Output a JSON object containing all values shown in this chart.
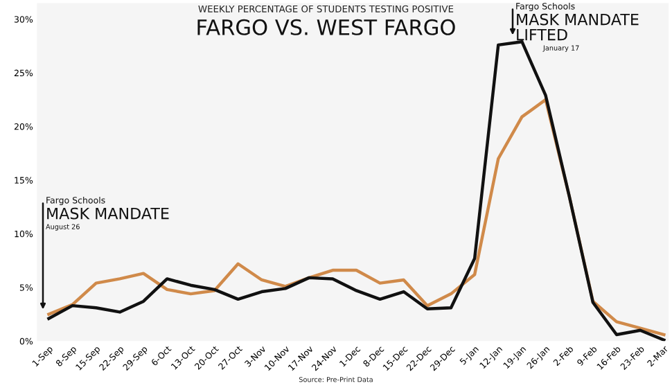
{
  "chart_data": {
    "type": "line",
    "title": "FARGO VS. WEST FARGO",
    "subtitle": "WEEKLY PERCENTAGE OF STUDENTS TESTING POSITIVE",
    "annotations": [
      "Fargo Schools",
      "MASK MANDATE",
      "August 26",
      "Fargo Schools",
      "MASK MANDATE LIFTED",
      "January 17",
      "Source: Pre-Print Data"
    ],
    "categories": [
      "1-Sep",
      "8-Sep",
      "15-Sep",
      "22-Sep",
      "29-Sep",
      "6-Oct",
      "13-Oct",
      "20-Oct",
      "27-Oct",
      "3-Nov",
      "10-Nov",
      "17-Nov",
      "24-Nov",
      "1-Dec",
      "8-Dec",
      "15-Dec",
      "22-Dec",
      "29-Dec",
      "5-Jan",
      "12-Jan",
      "19-Jan",
      "26-Jan",
      "2-Feb",
      "9-Feb",
      "16-Feb",
      "23-Feb",
      "2-Mar"
    ],
    "series": [
      {
        "color": "#d08a4a",
        "values": [
          2.5,
          3.4,
          5.4,
          5.8,
          6.3,
          4.8,
          4.4,
          4.7,
          7.2,
          5.7,
          5.1,
          5.9,
          6.6,
          6.6,
          5.4,
          5.7,
          3.3,
          4.4,
          6.2,
          17.0,
          20.9,
          22.5,
          13.5,
          3.7,
          1.8,
          1.2,
          0.6
        ]
      },
      {
        "color": "#111111",
        "values": [
          2.1,
          3.3,
          3.1,
          2.7,
          3.7,
          5.8,
          5.2,
          4.8,
          3.9,
          4.6,
          4.9,
          5.9,
          5.8,
          4.7,
          3.9,
          4.6,
          3.0,
          3.1,
          7.7,
          27.6,
          27.9,
          22.9,
          13.5,
          3.6,
          0.6,
          1.0,
          0.1
        ]
      }
    ],
    "ylim": [
      0,
      31.5
    ],
    "yticks": [
      {
        "value": 0,
        "label": "0%"
      },
      {
        "value": 5,
        "label": "5%"
      },
      {
        "value": 10,
        "label": "10%"
      },
      {
        "value": 15,
        "label": "15%"
      },
      {
        "value": 20,
        "label": "20%"
      },
      {
        "value": 25,
        "label": "25%"
      },
      {
        "value": 30,
        "label": "30%"
      }
    ],
    "grid": false,
    "legend": false
  }
}
